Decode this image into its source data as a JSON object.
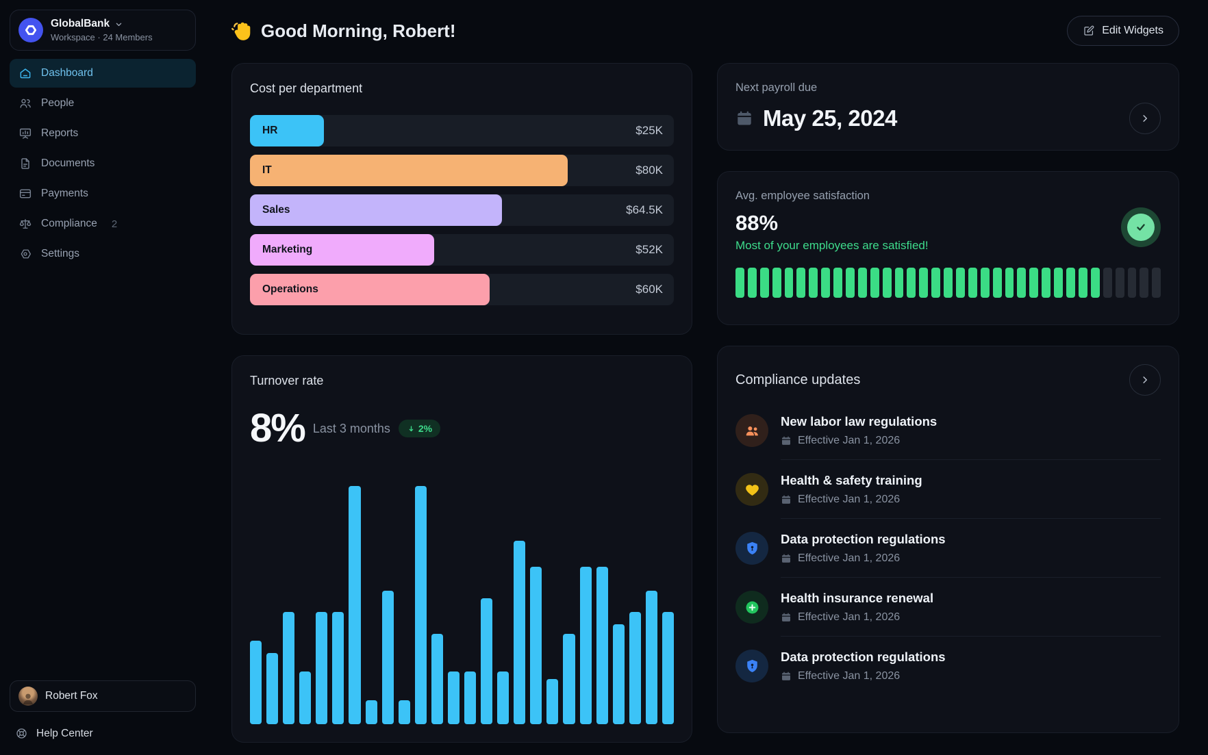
{
  "workspace": {
    "name": "GlobalBank",
    "subtitle": "Workspace · 24 Members"
  },
  "sidebar": {
    "nav": [
      {
        "label": "Dashboard",
        "icon": "home-icon",
        "active": true
      },
      {
        "label": "People",
        "icon": "people-icon"
      },
      {
        "label": "Reports",
        "icon": "reports-icon"
      },
      {
        "label": "Documents",
        "icon": "documents-icon"
      },
      {
        "label": "Payments",
        "icon": "payments-icon"
      },
      {
        "label": "Compliance",
        "icon": "scales-icon",
        "badge": "2"
      },
      {
        "label": "Settings",
        "icon": "settings-icon"
      }
    ],
    "user_name": "Robert Fox",
    "help_label": "Help Center"
  },
  "header": {
    "greeting": "Good Morning, Robert!",
    "edit_widgets": "Edit Widgets"
  },
  "cost_chart": {
    "type": "bar",
    "title": "Cost per department",
    "rows": [
      {
        "label": "HR",
        "value": "$25K",
        "amount": 25,
        "color": "#3cc3f7",
        "width_pct": 17.5
      },
      {
        "label": "IT",
        "value": "$80K",
        "amount": 80,
        "color": "#f6b273",
        "width_pct": 75
      },
      {
        "label": "Sales",
        "value": "$64.5K",
        "amount": 64.5,
        "color": "#c3b4fb",
        "width_pct": 59.5
      },
      {
        "label": "Marketing",
        "value": "$52K",
        "amount": 52,
        "color": "#f0abfc",
        "width_pct": 43.5
      },
      {
        "label": "Operations",
        "value": "$60K",
        "amount": 60,
        "color": "#fc9fab",
        "width_pct": 56.5
      }
    ]
  },
  "turnover": {
    "type": "bar",
    "title": "Turnover rate",
    "stat": "8%",
    "period": "Last 3 months",
    "delta": "2%",
    "delta_direction": "down",
    "bar_color": "#3cc3f7",
    "bars_pct": [
      35,
      30,
      47,
      22,
      47,
      47,
      100,
      10,
      56,
      10,
      100,
      38,
      22,
      22,
      53,
      22,
      77,
      66,
      19,
      38,
      66,
      66,
      42,
      47,
      56,
      47
    ]
  },
  "payroll": {
    "title": "Next payroll due",
    "date": "May 25, 2024"
  },
  "satisfaction": {
    "title": "Avg. employee satisfaction",
    "value": "88%",
    "message": "Most of your employees are satisfied!",
    "segments_total": 35,
    "segments_filled": 30,
    "fill_color": "#3bdc85",
    "empty_color": "#262b34"
  },
  "compliance": {
    "title": "Compliance updates",
    "items": [
      {
        "title": "New labor law regulations",
        "effective": "Effective Jan 1, 2026",
        "icon": "people-filled-icon",
        "icon_color": "#f8915c",
        "icon_bg": "#30201b"
      },
      {
        "title": "Health & safety training",
        "effective": "Effective Jan 1, 2026",
        "icon": "heart-icon",
        "icon_color": "#f2c218",
        "icon_bg": "#322b13"
      },
      {
        "title": "Data protection regulations",
        "effective": "Effective Jan 1, 2026",
        "icon": "shield-icon",
        "icon_color": "#3b82f6",
        "icon_bg": "#142741"
      },
      {
        "title": "Health insurance renewal",
        "effective": "Effective Jan 1, 2026",
        "icon": "plus-circle-icon",
        "icon_color": "#22c55e",
        "icon_bg": "#0f2b1e"
      },
      {
        "title": "Data protection regulations",
        "effective": "Effective Jan 1, 2026",
        "icon": "shield-icon",
        "icon_color": "#3b82f6",
        "icon_bg": "#142741"
      }
    ]
  }
}
